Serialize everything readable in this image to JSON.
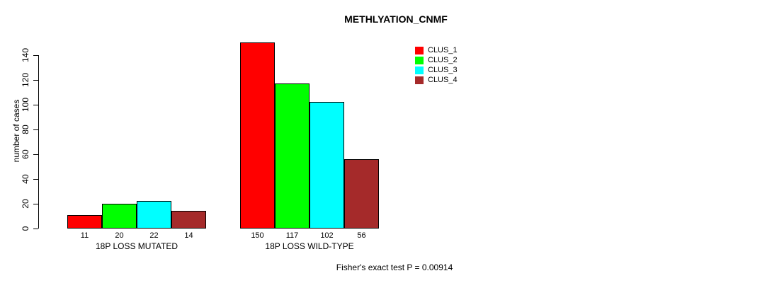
{
  "window": {
    "background": "#FFFFFF"
  },
  "chart_data": {
    "type": "bar",
    "title": "METHLYATION_CNMF",
    "ylabel": "number of cases",
    "xlabel": "",
    "ylim": [
      0,
      140
    ],
    "yticks": [
      0,
      20,
      40,
      60,
      80,
      100,
      120,
      140
    ],
    "grid": false,
    "legend_position": "top-right",
    "categories": [
      "18P LOSS MUTATED",
      "18P LOSS WILD-TYPE"
    ],
    "series": [
      {
        "name": "CLUS_1",
        "color": "#FF0000",
        "values": [
          11,
          150
        ]
      },
      {
        "name": "CLUS_2",
        "color": "#00FF00",
        "values": [
          20,
          117
        ]
      },
      {
        "name": "CLUS_3",
        "color": "#00FFFF",
        "values": [
          22,
          102
        ]
      },
      {
        "name": "CLUS_4",
        "color": "#A52A2A",
        "values": [
          14,
          56
        ]
      }
    ],
    "show_bar_value_labels": true,
    "bar_border_color": "#000000",
    "axis_color": "#000000",
    "annotation": "Fisher's exact test P = 0.00914"
  }
}
